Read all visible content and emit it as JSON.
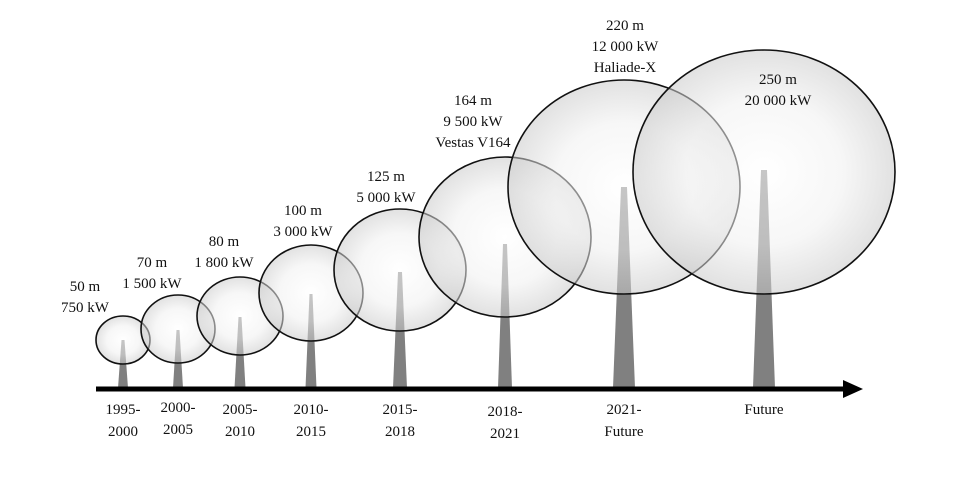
{
  "colors": {
    "tower": "#808080",
    "rotor_stroke": "#111111",
    "rotor_fill_center": "#ffffff",
    "rotor_fill_edge": "#c9c9c9",
    "axis": "#000000",
    "text": "#111111"
  },
  "turbines": [
    {
      "diameter": "50 m",
      "power": "750 kW",
      "model": "",
      "period": [
        "1995-",
        "2000"
      ]
    },
    {
      "diameter": "70 m",
      "power": "1 500 kW",
      "model": "",
      "period": [
        "2000-",
        "2005"
      ]
    },
    {
      "diameter": "80 m",
      "power": "1 800 kW",
      "model": "",
      "period": [
        "2005-",
        "2010"
      ]
    },
    {
      "diameter": "100 m",
      "power": "3 000 kW",
      "model": "",
      "period": [
        "2010-",
        "2015"
      ]
    },
    {
      "diameter": "125 m",
      "power": "5 000 kW",
      "model": "",
      "period": [
        "2015-",
        "2018"
      ]
    },
    {
      "diameter": "164 m",
      "power": "9 500 kW",
      "model": "Vestas V164",
      "period": [
        "2018-",
        "2021"
      ]
    },
    {
      "diameter": "220 m",
      "power": "12 000 kW",
      "model": "Haliade-X",
      "period": [
        "2021-",
        "Future"
      ]
    },
    {
      "diameter": "250 m",
      "power": "20 000 kW",
      "model": "",
      "period": [
        "Future"
      ]
    }
  ]
}
